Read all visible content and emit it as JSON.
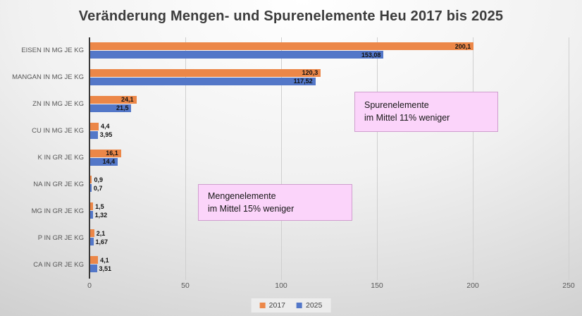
{
  "title": "Veränderung Mengen- und Spurenelemente Heu 2017 bis 2025",
  "chart_data": {
    "type": "bar",
    "orientation": "horizontal",
    "title": "Veränderung Mengen- und Spurenelemente Heu 2017 bis 2025",
    "categories": [
      "EISEN IN MG JE KG",
      "MANGAN IN MG JE KG",
      "ZN IN MG JE KG",
      "CU IN MG JE KG",
      "K IN GR JE KG",
      "NA IN GR JE KG",
      "MG IN GR JE KG",
      "P IN GR JE KG",
      "CA IN GR JE KG"
    ],
    "series": [
      {
        "name": "2017",
        "color": "#EC8748",
        "values": [
          200.1,
          120.3,
          24.1,
          4.4,
          16.1,
          0.9,
          1.5,
          2.1,
          4.1
        ]
      },
      {
        "name": "2025",
        "color": "#5377C8",
        "values": [
          153.08,
          117.52,
          21.5,
          3.95,
          14.4,
          0.7,
          1.32,
          1.67,
          3.51
        ]
      }
    ],
    "data_labels": true,
    "decimal_separator": ",",
    "xlim": [
      0,
      250
    ],
    "xticks": [
      0,
      50,
      100,
      150,
      200,
      250
    ],
    "gridlines": "vertical",
    "legend_position": "bottom-center"
  },
  "annotations": [
    {
      "lines": [
        "Spurenelemente",
        "im Mittel 11% weniger"
      ],
      "fill": "#fbd4fa",
      "border": "#cf9ece"
    },
    {
      "lines": [
        "Mengenelemente",
        "im Mittel 15% weniger"
      ],
      "fill": "#fbd4fa",
      "border": "#cf9ece"
    }
  ]
}
